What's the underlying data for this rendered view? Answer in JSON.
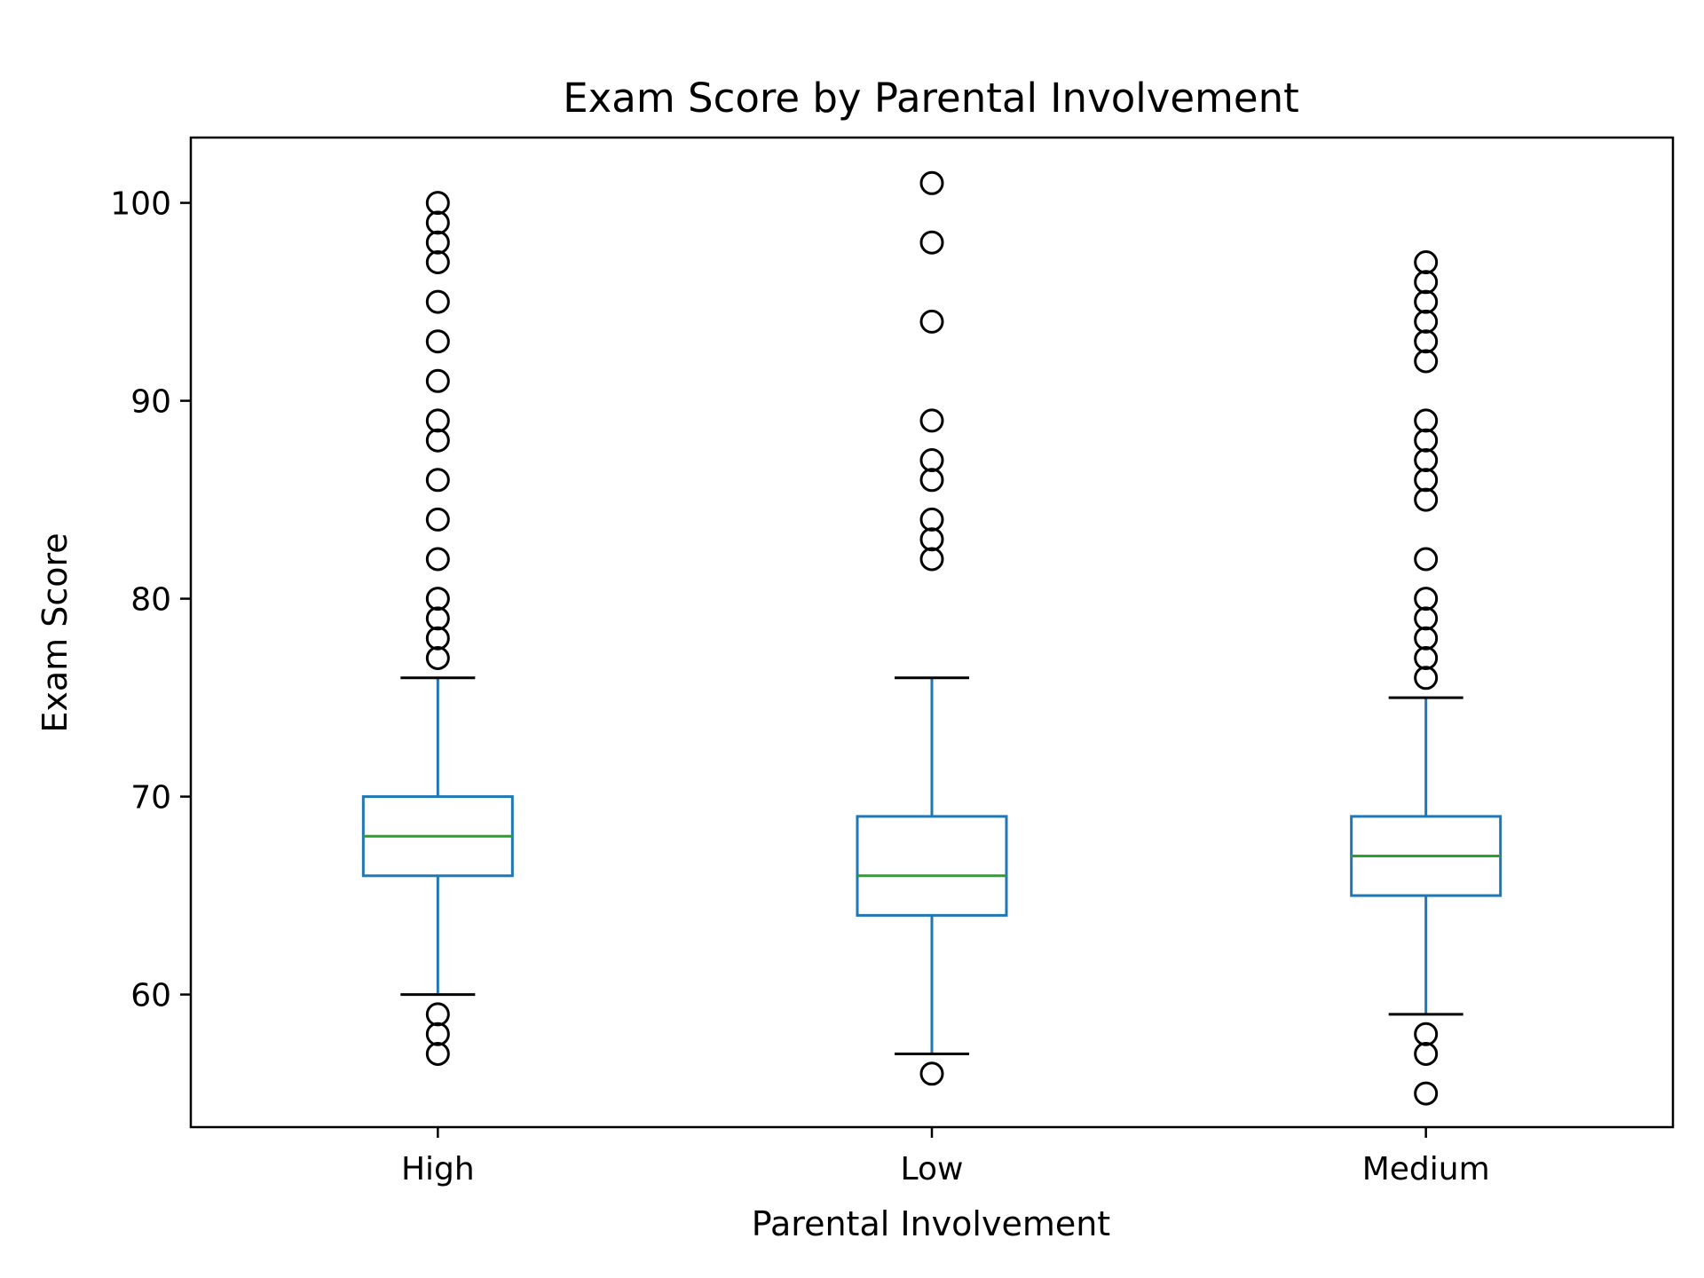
{
  "chart_data": {
    "type": "box",
    "title": "Exam Score by Parental Involvement",
    "xlabel": "Parental Involvement",
    "ylabel": "Exam Score",
    "categories": [
      "High",
      "Low",
      "Medium"
    ],
    "ylim": [
      53.3,
      103.3
    ],
    "yticks": [
      60,
      70,
      80,
      90,
      100
    ],
    "grid": false,
    "colors": {
      "box": "#1f77b4",
      "median": "#2ca02c",
      "cap": "#000000",
      "flier": "#000000"
    },
    "boxes": [
      {
        "category": "High",
        "whisker_low": 60,
        "q1": 66,
        "median": 68,
        "q3": 70,
        "whisker_high": 76,
        "outliers": [
          100,
          99,
          98,
          97,
          95,
          93,
          91,
          89,
          88,
          86,
          84,
          82,
          80,
          79,
          78,
          77,
          59,
          58,
          57
        ]
      },
      {
        "category": "Low",
        "whisker_low": 57,
        "q1": 64,
        "median": 66,
        "q3": 69,
        "whisker_high": 76,
        "outliers": [
          101,
          98,
          94,
          89,
          87,
          86,
          84,
          83,
          82,
          56
        ]
      },
      {
        "category": "Medium",
        "whisker_low": 59,
        "q1": 65,
        "median": 67,
        "q3": 69,
        "whisker_high": 75,
        "outliers": [
          97,
          96,
          95,
          94,
          93,
          92,
          89,
          88,
          87,
          86,
          85,
          82,
          80,
          79,
          78,
          77,
          76,
          58,
          57,
          55
        ]
      }
    ]
  }
}
